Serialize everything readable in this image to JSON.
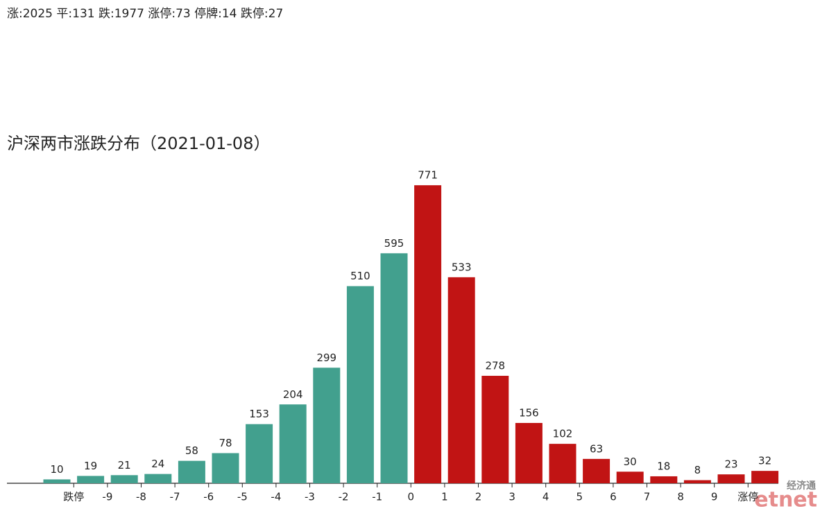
{
  "summary": "涨:2025 平:131 跌:1977 涨停:73 停牌:14 跌停:27",
  "watermark": {
    "top": "经济通",
    "bottom": "etnet"
  },
  "chart_data": {
    "type": "bar",
    "title": "沪深两市涨跌分布（2021-01-08）",
    "categories": [
      null,
      null,
      null,
      null,
      null,
      null,
      null,
      null,
      null,
      null,
      null,
      null,
      null,
      null,
      null,
      null,
      null,
      null,
      null,
      null,
      null,
      null
    ],
    "values": [
      10,
      19,
      21,
      24,
      58,
      78,
      153,
      204,
      299,
      510,
      595,
      771,
      533,
      278,
      156,
      102,
      63,
      30,
      18,
      8,
      23,
      32
    ],
    "colors": [
      "#42a08e",
      "#42a08e",
      "#42a08e",
      "#42a08e",
      "#42a08e",
      "#42a08e",
      "#42a08e",
      "#42a08e",
      "#42a08e",
      "#42a08e",
      "#42a08e",
      "#c11414",
      "#c11414",
      "#c11414",
      "#c11414",
      "#c11414",
      "#c11414",
      "#c11414",
      "#c11414",
      "#c11414",
      "#c11414",
      "#c11414"
    ],
    "boundary_labels": [
      "跌停",
      "-9",
      "-8",
      "-7",
      "-6",
      "-5",
      "-4",
      "-3",
      "-2",
      "-1",
      "0",
      "1",
      "2",
      "3",
      "4",
      "5",
      "6",
      "7",
      "8",
      "9",
      "涨停"
    ],
    "ylim": [
      0,
      800
    ],
    "grid": false
  }
}
